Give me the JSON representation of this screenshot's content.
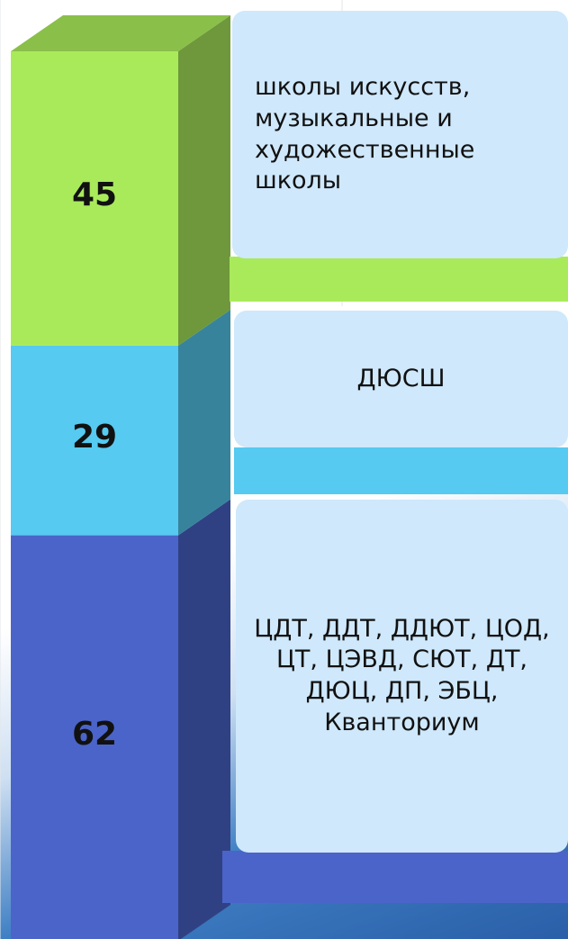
{
  "chart_data": {
    "type": "bar",
    "stacked": true,
    "series": [
      {
        "name": "ЦДТ, ДДТ, ДДЮТ, ЦОД, ЦТ, ЦЭВД, СЮТ, ДТ, ДЮЦ, ДП, ЭБЦ, Кванториум",
        "color": "#4b64c9",
        "values": [
          62
        ]
      },
      {
        "name": "ДЮСШ",
        "color": "#56caf0",
        "values": [
          29
        ]
      },
      {
        "name": "школы искусств, музыкальные и художественные школы",
        "color": "#a9ea5b",
        "values": [
          45
        ]
      }
    ]
  }
}
